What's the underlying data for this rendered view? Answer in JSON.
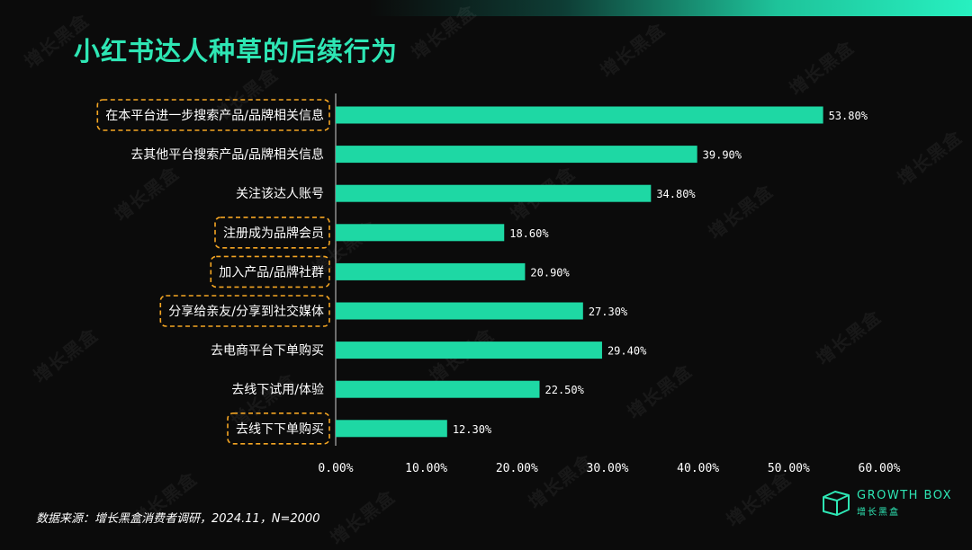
{
  "title": "小红书达人种草的后续行为",
  "source": "数据来源：增长黑盒消费者调研，2024.11，N=2000",
  "logo": {
    "brand": "GROWTH BOX",
    "sub": "增长黑盒",
    "icon": "box-logo-icon"
  },
  "watermark": "增长黑盒",
  "colors": {
    "bar": "#1ed8a4",
    "accent": "#2ee6b4",
    "highlight": "#f5a623",
    "background": "#0b0b0b"
  },
  "chart_data": {
    "type": "bar",
    "orientation": "horizontal",
    "categories": [
      "在本平台进一步搜索产品/品牌相关信息",
      "去其他平台搜索产品/品牌相关信息",
      "关注该达人账号",
      "注册成为品牌会员",
      "加入产品/品牌社群",
      "分享给亲友/分享到社交媒体",
      "去电商平台下单购买",
      "去线下试用/体验",
      "去线下下单购买"
    ],
    "values": [
      53.8,
      39.9,
      34.8,
      18.6,
      20.9,
      27.3,
      29.4,
      22.5,
      12.3
    ],
    "value_labels": [
      "53.80%",
      "39.90%",
      "34.80%",
      "18.60%",
      "20.90%",
      "27.30%",
      "29.40%",
      "22.50%",
      "12.30%"
    ],
    "highlighted": [
      true,
      false,
      false,
      true,
      true,
      true,
      false,
      false,
      true
    ],
    "xlim": [
      0,
      60
    ],
    "ticks": [
      0,
      10,
      20,
      30,
      40,
      50,
      60
    ],
    "tick_labels": [
      "0.00%",
      "10.00%",
      "20.00%",
      "30.00%",
      "40.00%",
      "50.00%",
      "60.00%"
    ],
    "grid": false
  }
}
